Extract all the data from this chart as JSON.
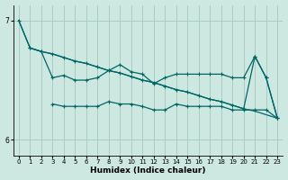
{
  "xlabel": "Humidex (Indice chaleur)",
  "bg_color": "#cce8e0",
  "grid_color": "#aaccC4",
  "line_color": "#006666",
  "xlim": [
    -0.5,
    23.5
  ],
  "ylim": [
    5.87,
    7.13
  ],
  "yticks": [
    6,
    7
  ],
  "xticks": [
    0,
    1,
    2,
    3,
    4,
    5,
    6,
    7,
    8,
    9,
    10,
    11,
    12,
    13,
    14,
    15,
    16,
    17,
    18,
    19,
    20,
    21,
    22,
    23
  ],
  "line1_x": [
    0,
    1,
    2,
    3,
    4,
    5,
    6,
    7,
    8,
    9,
    10,
    11,
    12,
    13,
    14,
    15,
    16,
    17,
    18,
    19,
    20,
    21,
    22,
    23
  ],
  "line1_y": [
    7.0,
    6.77,
    6.74,
    6.72,
    6.69,
    6.66,
    6.64,
    6.61,
    6.58,
    6.56,
    6.53,
    6.5,
    6.48,
    6.45,
    6.42,
    6.4,
    6.37,
    6.34,
    6.32,
    6.29,
    6.26,
    6.24,
    6.21,
    6.18
  ],
  "line2_x": [
    0,
    1,
    2,
    3,
    4,
    5,
    6,
    7,
    8,
    9,
    10,
    11,
    12,
    13,
    14,
    15,
    16,
    17,
    18,
    19,
    20,
    21,
    22,
    23
  ],
  "line2_y": [
    7.0,
    6.77,
    6.74,
    6.72,
    6.69,
    6.66,
    6.64,
    6.61,
    6.58,
    6.56,
    6.53,
    6.5,
    6.48,
    6.45,
    6.42,
    6.4,
    6.37,
    6.34,
    6.32,
    6.29,
    6.26,
    6.7,
    6.52,
    6.18
  ],
  "line3_x": [
    1,
    2,
    3,
    4,
    5,
    6,
    7,
    8,
    9,
    10,
    11,
    12,
    13,
    14,
    15,
    16,
    17,
    18,
    19,
    20,
    21,
    22,
    23
  ],
  "line3_y": [
    6.77,
    6.74,
    6.52,
    6.54,
    6.5,
    6.5,
    6.52,
    6.58,
    6.63,
    6.57,
    6.55,
    6.47,
    6.52,
    6.55,
    6.55,
    6.55,
    6.55,
    6.55,
    6.52,
    6.52,
    6.7,
    6.52,
    6.18
  ],
  "line4_x": [
    3,
    4,
    5,
    6,
    7,
    8,
    9,
    10,
    11,
    12,
    13,
    14,
    15,
    16,
    17,
    18,
    19,
    20,
    21,
    22,
    23
  ],
  "line4_y": [
    6.3,
    6.28,
    6.28,
    6.28,
    6.28,
    6.32,
    6.3,
    6.3,
    6.28,
    6.25,
    6.25,
    6.3,
    6.28,
    6.28,
    6.28,
    6.28,
    6.25,
    6.25,
    6.25,
    6.25,
    6.18
  ]
}
